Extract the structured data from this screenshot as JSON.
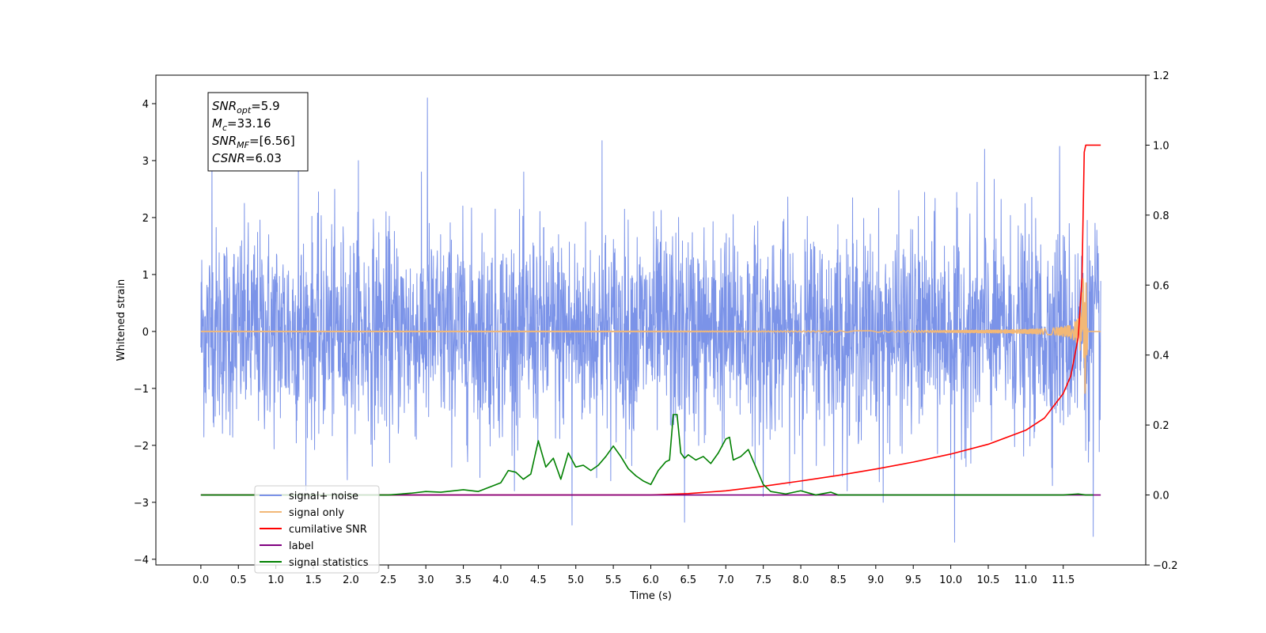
{
  "chart_data": {
    "type": "line",
    "xlabel": "Time (s)",
    "ylabel": "Whitened strain",
    "xlim": [
      -0.6,
      12.6
    ],
    "ylim": [
      -4.1,
      4.5
    ],
    "ylim_right": [
      -0.2,
      1.2
    ],
    "x_ticks": [
      0.0,
      0.5,
      1.0,
      1.5,
      2.0,
      2.5,
      3.0,
      3.5,
      4.0,
      4.5,
      5.0,
      5.5,
      6.0,
      6.5,
      7.0,
      7.5,
      8.0,
      8.5,
      9.0,
      9.5,
      10.0,
      10.5,
      11.0,
      11.5
    ],
    "x_tick_labels": [
      "0.0",
      "0.5",
      "1.0",
      "1.5",
      "2.0",
      "2.5",
      "3.0",
      "3.5",
      "4.0",
      "4.5",
      "5.0",
      "5.5",
      "6.0",
      "6.5",
      "7.0",
      "7.5",
      "8.0",
      "8.5",
      "9.0",
      "9.5",
      "10.0",
      "10.5",
      "11.0",
      "11.5"
    ],
    "y_ticks": [
      -4,
      -3,
      -2,
      -1,
      0,
      1,
      2,
      3,
      4
    ],
    "y_tick_labels": [
      "−4",
      "−3",
      "−2",
      "−1",
      "0",
      "1",
      "2",
      "3",
      "4"
    ],
    "y2_ticks": [
      -0.2,
      0.0,
      0.2,
      0.4,
      0.6,
      0.8,
      1.0,
      1.2
    ],
    "y2_tick_labels": [
      "−0.2",
      "0.0",
      "0.2",
      "0.4",
      "0.6",
      "0.8",
      "1.0",
      "1.2"
    ],
    "grid": false,
    "legend_position": "bottom-left",
    "annotation": {
      "lines": [
        {
          "base": "SNR",
          "sub": "opt",
          "rest": "=5.9"
        },
        {
          "base": "M",
          "sub": "c",
          "rest": "=33.16"
        },
        {
          "base": "SNR",
          "sub": "MF",
          "rest": "=[6.56]"
        },
        {
          "base": "CSNR",
          "sub": "",
          "rest": "=6.03"
        }
      ]
    },
    "series": [
      {
        "name": "signal+ noise",
        "axis": "left",
        "color": "#7b93e8",
        "kind": "noise",
        "t_start": 0.0,
        "t_end": 12.0,
        "sigma": 0.9,
        "spikes": [
          [
            3.02,
            4.1
          ],
          [
            5.35,
            3.35
          ],
          [
            10.05,
            -3.7
          ],
          [
            11.9,
            -3.6
          ],
          [
            4.95,
            -3.4
          ],
          [
            6.45,
            -3.35
          ],
          [
            0.15,
            3.1
          ],
          [
            1.3,
            3.1
          ],
          [
            2.1,
            3.0
          ],
          [
            11.45,
            3.25
          ],
          [
            7.5,
            -2.9
          ],
          [
            9.1,
            -3.0
          ],
          [
            10.45,
            3.2
          ]
        ]
      },
      {
        "name": "signal only",
        "axis": "left",
        "color": "#f2b877",
        "kind": "chirp",
        "t_start": 0.0,
        "t_end": 12.0,
        "t_merger": 11.78,
        "peak_amplitude": 1.7
      },
      {
        "name": "cumilative SNR",
        "axis": "right",
        "color": "#ff0000",
        "x": [
          0.0,
          6.0,
          6.5,
          7.0,
          7.5,
          8.0,
          8.5,
          9.0,
          9.5,
          10.0,
          10.5,
          11.0,
          11.25,
          11.5,
          11.6,
          11.7,
          11.75,
          11.78,
          11.8,
          12.0
        ],
        "y": [
          0.0,
          0.0,
          0.004,
          0.012,
          0.025,
          0.04,
          0.056,
          0.074,
          0.094,
          0.117,
          0.145,
          0.185,
          0.22,
          0.29,
          0.34,
          0.45,
          0.62,
          0.98,
          1.0,
          1.0
        ]
      },
      {
        "name": "label",
        "axis": "right",
        "color": "#800080",
        "x": [
          0.0,
          12.0
        ],
        "y": [
          0.0,
          0.0
        ]
      },
      {
        "name": "signal statistics",
        "axis": "right",
        "color": "#008000",
        "x": [
          0.0,
          1.0,
          2.0,
          2.5,
          2.8,
          3.0,
          3.2,
          3.5,
          3.7,
          4.0,
          4.1,
          4.2,
          4.3,
          4.4,
          4.5,
          4.6,
          4.7,
          4.8,
          4.9,
          5.0,
          5.1,
          5.2,
          5.3,
          5.4,
          5.5,
          5.6,
          5.7,
          5.8,
          5.9,
          6.0,
          6.1,
          6.2,
          6.25,
          6.3,
          6.35,
          6.4,
          6.45,
          6.5,
          6.6,
          6.7,
          6.8,
          6.9,
          7.0,
          7.05,
          7.1,
          7.2,
          7.3,
          7.4,
          7.5,
          7.6,
          7.8,
          8.0,
          8.2,
          8.4,
          8.5,
          8.6,
          11.0,
          11.5,
          11.7,
          11.8,
          11.9
        ],
        "y": [
          0.0,
          0.0,
          0.0,
          0.0,
          0.005,
          0.01,
          0.008,
          0.015,
          0.01,
          0.035,
          0.07,
          0.065,
          0.045,
          0.06,
          0.155,
          0.08,
          0.105,
          0.045,
          0.12,
          0.08,
          0.085,
          0.07,
          0.085,
          0.11,
          0.14,
          0.11,
          0.075,
          0.055,
          0.04,
          0.03,
          0.07,
          0.095,
          0.1,
          0.23,
          0.23,
          0.12,
          0.105,
          0.115,
          0.1,
          0.11,
          0.09,
          0.12,
          0.16,
          0.165,
          0.1,
          0.11,
          0.13,
          0.08,
          0.03,
          0.01,
          0.003,
          0.012,
          0.0,
          0.008,
          0.0,
          0.0,
          0.0,
          0.0,
          0.003,
          0.0,
          0.0
        ]
      }
    ],
    "legend": [
      {
        "label": "signal+ noise",
        "color": "#7b93e8"
      },
      {
        "label": "signal only",
        "color": "#f2b877"
      },
      {
        "label": "cumilative SNR",
        "color": "#ff0000"
      },
      {
        "label": "label",
        "color": "#800080"
      },
      {
        "label": "signal statistics",
        "color": "#008000"
      }
    ]
  }
}
